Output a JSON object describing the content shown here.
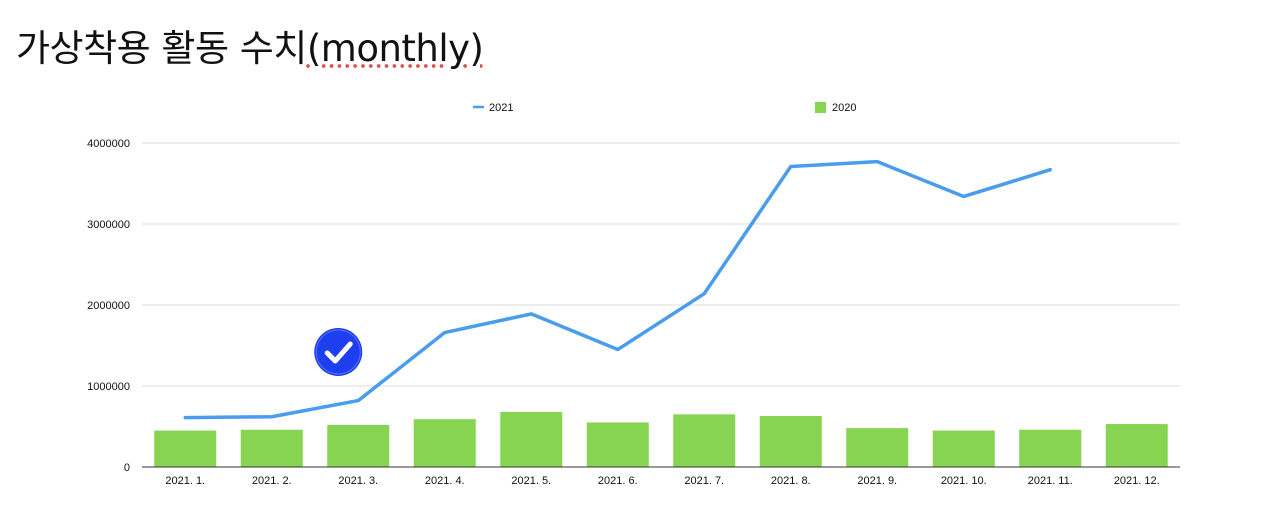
{
  "page": {
    "title_main": "가상착용 활동 수치",
    "title_suffix": "(monthly)"
  },
  "chart_data": {
    "type": "bar",
    "categories": [
      "2021. 1.",
      "2021. 2.",
      "2021. 3.",
      "2021. 4.",
      "2021. 5.",
      "2021. 6.",
      "2021. 7.",
      "2021. 8.",
      "2021. 9.",
      "2021. 10.",
      "2021. 11.",
      "2021. 12."
    ],
    "series": [
      {
        "name": "2021",
        "type": "line",
        "color": "#4a9ced",
        "values": [
          610000,
          620000,
          820000,
          1660000,
          1890000,
          1450000,
          2140000,
          3710000,
          3770000,
          3340000,
          3670000,
          null
        ]
      },
      {
        "name": "2020",
        "type": "bar",
        "color": "#87d352",
        "values": [
          450000,
          460000,
          520000,
          590000,
          680000,
          550000,
          650000,
          630000,
          480000,
          450000,
          460000,
          530000
        ]
      }
    ],
    "yticks": [
      "0",
      "1000000",
      "2000000",
      "3000000",
      "4000000"
    ],
    "ylim": [
      0,
      4000000
    ],
    "grid": true,
    "legend": "top",
    "annotation": {
      "icon": "check-circle-icon",
      "color": "#1e3ff0",
      "x_category": "2021. 3.",
      "y_value": 1420000
    }
  }
}
